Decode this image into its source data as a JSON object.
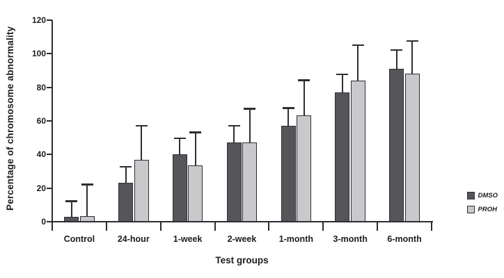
{
  "chart_data": {
    "type": "bar",
    "title": "",
    "xlabel": "Test groups",
    "ylabel": "Percentage of chromosome abnormality",
    "ylim": [
      0,
      120
    ],
    "yticks": [
      0,
      20,
      40,
      60,
      80,
      100,
      120
    ],
    "categories": [
      "Control",
      "24-hour",
      "1-week",
      "2-week",
      "1-month",
      "3-month",
      "6-month"
    ],
    "series": [
      {
        "name": "DMSO",
        "color": "#55555a",
        "values": [
          3,
          23,
          40,
          47,
          57,
          77,
          91
        ],
        "errors_up": [
          9.5,
          10,
          10,
          10.5,
          11,
          11,
          11.5
        ]
      },
      {
        "name": "PROH",
        "color": "#c9c9cc",
        "values": [
          3.5,
          37,
          33.5,
          47,
          63.5,
          84,
          88
        ],
        "errors_up": [
          19,
          20.5,
          20,
          20.5,
          21,
          21.5,
          20
        ]
      }
    ],
    "error_bars": "upper",
    "grid": false,
    "legend_position": "right",
    "axis_color": "#2b2b30",
    "bar_border_color": "#2e2e33"
  }
}
